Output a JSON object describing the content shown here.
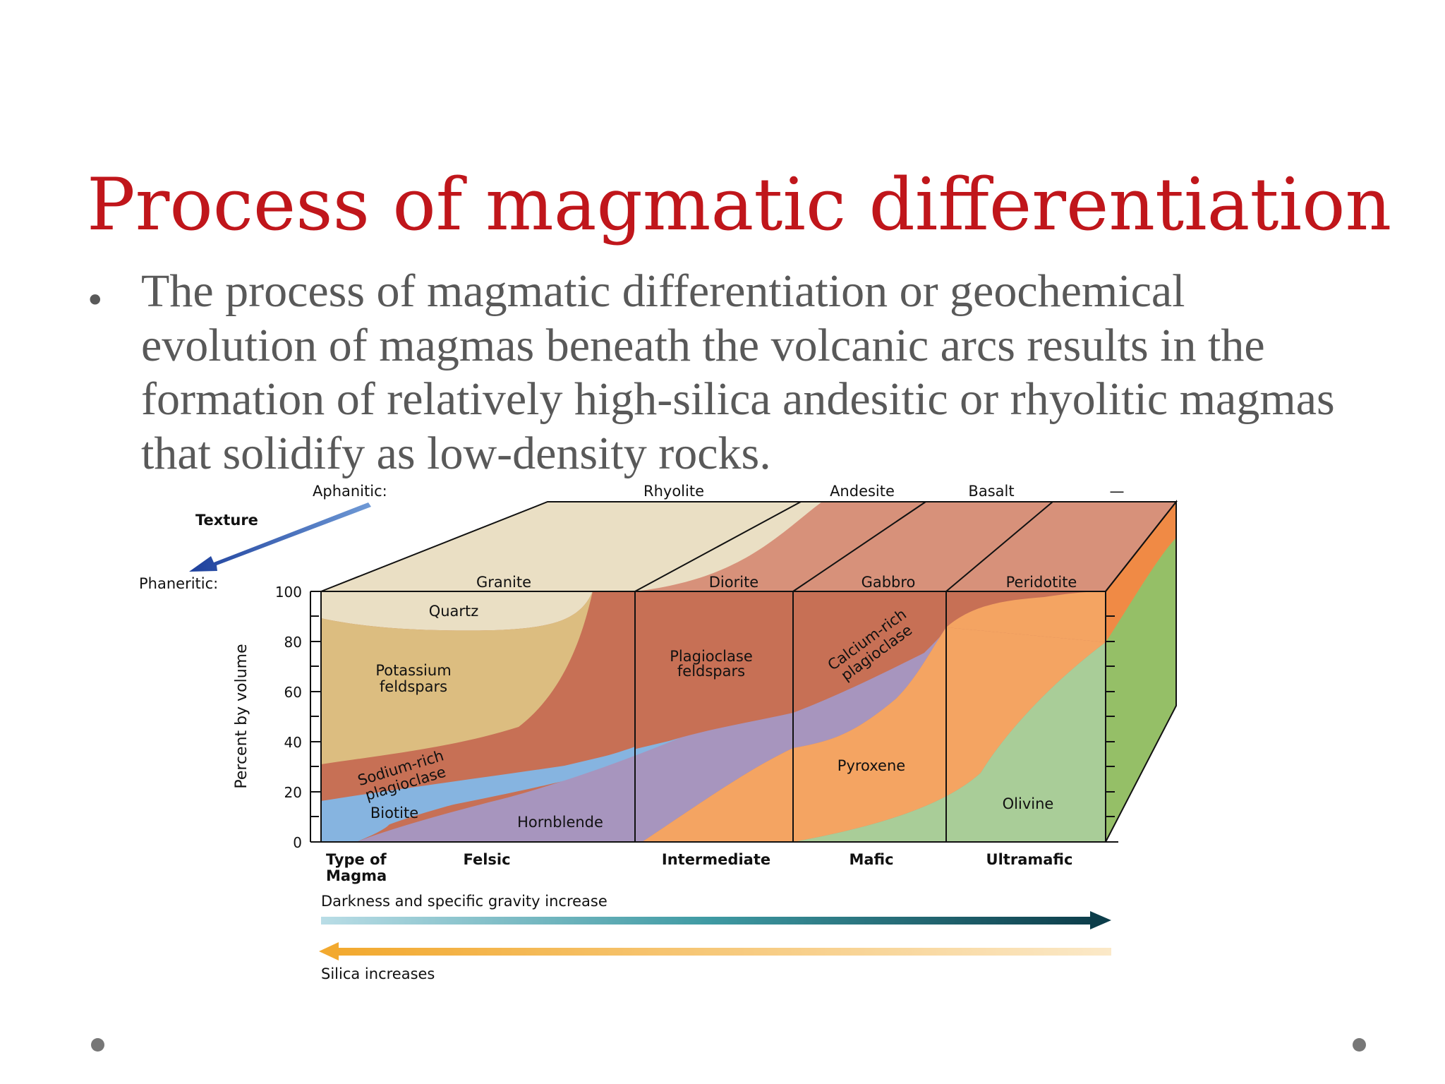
{
  "slide": {
    "title": "Process of magmatic differentiation",
    "bullet": "The process of magmatic differentiation or geochemical evolution of magmas beneath the volcanic arcs results in the formation of relatively high-silica andesitic or rhyolitic magmas that solidify as low-density rocks."
  },
  "diagram": {
    "texture_label": "Texture",
    "aphanitic_label": "Aphanitic:",
    "phaneritic_label": "Phaneritic:",
    "aphanitic_rocks": [
      "Rhyolite",
      "Andesite",
      "Basalt",
      "—"
    ],
    "phaneritic_rocks": [
      "Granite",
      "Diorite",
      "Gabbro",
      "Peridotite"
    ],
    "y_axis_label": "Percent by volume",
    "y_ticks": [
      "0",
      "20",
      "40",
      "60",
      "80",
      "100"
    ],
    "minerals": {
      "quartz": "Quartz",
      "potassium_1": "Potassium",
      "potassium_2": "feldspars",
      "sodium_1": "Sodium-rich",
      "sodium_2": "plagioclase",
      "biotite": "Biotite",
      "hornblende": "Hornblende",
      "plagioclase_1": "Plagioclase",
      "plagioclase_2": "feldspars",
      "calcium_1": "Calcium-rich",
      "calcium_2": "plagioclase",
      "pyroxene": "Pyroxene",
      "olivine": "Olivine"
    },
    "magma_type_label_1": "Type of",
    "magma_type_label_2": "Magma",
    "magma_types": [
      "Felsic",
      "Intermediate",
      "Mafic",
      "Ultramafic"
    ],
    "darkness_label": "Darkness and specific gravity increase",
    "silica_label": "Silica increases",
    "colors": {
      "quartz": "#eadfc4",
      "potassium_feldspar": "#dcbd80",
      "plagioclase": "#c77055",
      "biotite": "#86b4e0",
      "hornblende": "#a795be",
      "pyroxene": "#f4a462",
      "olivine": "#a9cd98",
      "top_face": "#d7917a",
      "title": "#c0161b",
      "body_text": "#595959"
    }
  }
}
